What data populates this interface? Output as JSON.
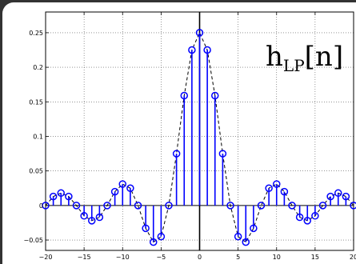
{
  "chart_data": {
    "type": "stem",
    "title": "",
    "xlabel": "",
    "ylabel": "",
    "annotation": {
      "base": "h",
      "subscript": "LP",
      "argument": "[n]"
    },
    "xlim": [
      -20,
      20
    ],
    "ylim": [
      -0.065,
      0.28
    ],
    "xticks": [
      "−20",
      "−15",
      "−10",
      "−5",
      "0",
      "5",
      "10",
      "15",
      "20"
    ],
    "xtick_values": [
      -20,
      -15,
      -10,
      -5,
      0,
      5,
      10,
      15,
      20
    ],
    "yticks": [
      "−0.05",
      "0",
      "0.05",
      "0.1",
      "0.15",
      "0.2",
      "0.25"
    ],
    "ytick_values": [
      -0.05,
      0,
      0.05,
      0.1,
      0.15,
      0.2,
      0.25
    ],
    "grid": true,
    "series": [
      {
        "x": [
          -20,
          -19,
          -18,
          -17,
          -16,
          -15,
          -14,
          -13,
          -12,
          -11,
          -10,
          -9,
          -8,
          -7,
          -6,
          -5,
          -4,
          -3,
          -2,
          -1,
          0,
          1,
          2,
          3,
          4,
          5,
          6,
          7,
          8,
          9,
          10,
          11,
          12,
          13,
          14,
          15,
          16,
          17,
          18,
          19,
          20
        ],
        "values": [
          0.0,
          0.013,
          0.018,
          0.013,
          0.0,
          -0.015,
          -0.022,
          -0.017,
          0.0,
          0.02,
          0.031,
          0.025,
          0.0,
          -0.033,
          -0.053,
          -0.045,
          0.0,
          0.075,
          0.159,
          0.225,
          0.25,
          0.225,
          0.159,
          0.075,
          0.0,
          -0.045,
          -0.053,
          -0.033,
          0.0,
          0.025,
          0.031,
          0.02,
          0.0,
          -0.017,
          -0.022,
          -0.015,
          0.0,
          0.013,
          0.018,
          0.013,
          0.0
        ],
        "color": "#0000ff",
        "envelope_color": "#000000"
      }
    ]
  }
}
